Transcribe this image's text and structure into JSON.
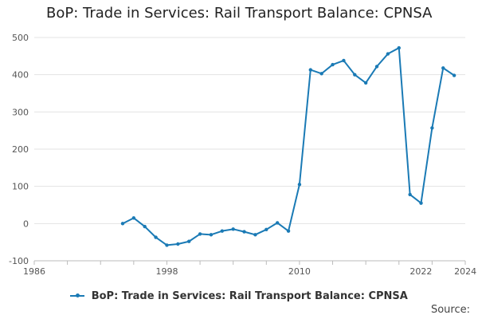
{
  "page": {
    "title": "BoP: Trade in Services: Rail Transport Balance: CPNSA",
    "source_label": "Source:"
  },
  "chart_data": {
    "type": "line",
    "title": "BoP: Trade in Services: Rail Transport Balance: CPNSA",
    "xlabel": "",
    "ylabel": "",
    "xlim": [
      1986,
      2025
    ],
    "ylim": [
      -100,
      500
    ],
    "y_ticks": [
      -100,
      0,
      100,
      200,
      300,
      400,
      500
    ],
    "x_ticks": [
      1986,
      1998,
      2010,
      2022,
      2024
    ],
    "grid": true,
    "legend_position": "bottom",
    "line_color": "#1a7ab5",
    "series": [
      {
        "name": "BoP: Trade in Services: Rail Transport Balance: CPNSA",
        "x": [
          1994,
          1995,
          1996,
          1997,
          1998,
          1999,
          2000,
          2001,
          2002,
          2003,
          2004,
          2005,
          2006,
          2007,
          2008,
          2009,
          2010,
          2011,
          2012,
          2013,
          2014,
          2015,
          2016,
          2017,
          2018,
          2019,
          2020,
          2021,
          2022,
          2023,
          2024
        ],
        "values": [
          0,
          15,
          -8,
          -37,
          -58,
          -55,
          -48,
          -28,
          -30,
          -20,
          -15,
          -22,
          -30,
          -16,
          2,
          -20,
          105,
          413,
          403,
          427,
          438,
          400,
          378,
          422,
          456,
          472,
          78,
          55,
          257,
          418,
          398
        ]
      }
    ]
  }
}
